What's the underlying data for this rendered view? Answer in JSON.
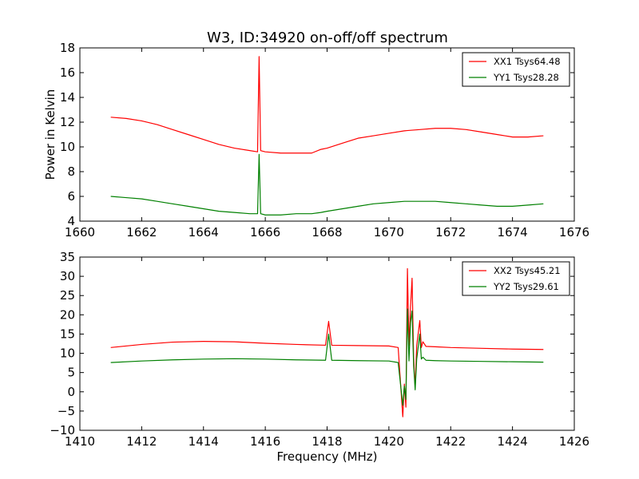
{
  "title": "W3, ID:34920 on-off/off spectrum",
  "chart_data": [
    {
      "type": "line",
      "ylabel": "Power in Kelvin",
      "xlabel": "",
      "xlim": [
        1660,
        1676
      ],
      "ylim": [
        4,
        18
      ],
      "xticks": [
        1660,
        1662,
        1664,
        1666,
        1668,
        1670,
        1672,
        1674,
        1676
      ],
      "yticks": [
        4,
        6,
        8,
        10,
        12,
        14,
        16,
        18
      ],
      "legend_position": "top-right",
      "series": [
        {
          "name": "XX1 Tsys64.48",
          "color": "#ff0000",
          "x": [
            1661.0,
            1661.5,
            1662.0,
            1662.5,
            1663.0,
            1663.5,
            1664.0,
            1664.5,
            1665.0,
            1665.5,
            1665.75,
            1665.8,
            1665.85,
            1666.0,
            1666.5,
            1667.0,
            1667.5,
            1667.8,
            1668.0,
            1668.5,
            1669.0,
            1669.5,
            1670.0,
            1670.5,
            1671.0,
            1671.5,
            1672.0,
            1672.5,
            1673.0,
            1673.5,
            1674.0,
            1674.5,
            1675.0
          ],
          "y": [
            12.4,
            12.3,
            12.1,
            11.8,
            11.4,
            11.0,
            10.6,
            10.2,
            9.9,
            9.7,
            9.6,
            17.3,
            9.7,
            9.6,
            9.5,
            9.5,
            9.5,
            9.8,
            9.9,
            10.3,
            10.7,
            10.9,
            11.1,
            11.3,
            11.4,
            11.5,
            11.5,
            11.4,
            11.2,
            11.0,
            10.8,
            10.8,
            10.9
          ]
        },
        {
          "name": "YY1 Tsys28.28",
          "color": "#008000",
          "x": [
            1661.0,
            1661.5,
            1662.0,
            1662.5,
            1663.0,
            1663.5,
            1664.0,
            1664.5,
            1665.0,
            1665.5,
            1665.75,
            1665.8,
            1665.85,
            1666.0,
            1666.5,
            1667.0,
            1667.5,
            1667.8,
            1668.0,
            1668.5,
            1669.0,
            1669.5,
            1670.0,
            1670.5,
            1671.0,
            1671.5,
            1672.0,
            1672.5,
            1673.0,
            1673.5,
            1674.0,
            1674.5,
            1675.0
          ],
          "y": [
            6.0,
            5.9,
            5.8,
            5.6,
            5.4,
            5.2,
            5.0,
            4.8,
            4.7,
            4.6,
            4.6,
            9.4,
            4.6,
            4.5,
            4.5,
            4.6,
            4.6,
            4.7,
            4.8,
            5.0,
            5.2,
            5.4,
            5.5,
            5.6,
            5.6,
            5.6,
            5.5,
            5.4,
            5.3,
            5.2,
            5.2,
            5.3,
            5.4
          ]
        }
      ]
    },
    {
      "type": "line",
      "ylabel": "",
      "xlabel": "Frequency (MHz)",
      "xlim": [
        1410,
        1426
      ],
      "ylim": [
        -10,
        35
      ],
      "xticks": [
        1410,
        1412,
        1414,
        1416,
        1418,
        1420,
        1422,
        1424,
        1426
      ],
      "yticks": [
        -10,
        -5,
        0,
        5,
        10,
        15,
        20,
        25,
        30,
        35
      ],
      "legend_position": "top-right",
      "series": [
        {
          "name": "XX2 Tsys45.21",
          "color": "#ff0000",
          "x": [
            1411.0,
            1412.0,
            1413.0,
            1414.0,
            1415.0,
            1416.0,
            1417.0,
            1417.95,
            1418.05,
            1418.15,
            1419.0,
            1420.0,
            1420.3,
            1420.45,
            1420.5,
            1420.55,
            1420.6,
            1420.65,
            1420.7,
            1420.75,
            1420.8,
            1420.85,
            1420.9,
            1421.0,
            1421.05,
            1421.1,
            1421.2,
            1421.5,
            1422.0,
            1423.0,
            1424.0,
            1425.0
          ],
          "y": [
            11.5,
            12.3,
            12.9,
            13.1,
            13.0,
            12.6,
            12.3,
            12.1,
            18.3,
            12.1,
            12.0,
            11.9,
            11.5,
            -6.5,
            2.0,
            -4.0,
            32.0,
            12.0,
            22.0,
            29.5,
            9.0,
            1.0,
            12.0,
            18.5,
            11.5,
            13.0,
            11.8,
            11.7,
            11.5,
            11.3,
            11.1,
            11.0
          ]
        },
        {
          "name": "YY2 Tsys29.61",
          "color": "#008000",
          "x": [
            1411.0,
            1412.0,
            1413.0,
            1414.0,
            1415.0,
            1416.0,
            1417.0,
            1417.95,
            1418.05,
            1418.15,
            1419.0,
            1420.0,
            1420.3,
            1420.45,
            1420.5,
            1420.55,
            1420.6,
            1420.65,
            1420.7,
            1420.75,
            1420.8,
            1420.85,
            1420.9,
            1421.0,
            1421.05,
            1421.1,
            1421.2,
            1421.5,
            1422.0,
            1423.0,
            1424.0,
            1425.0
          ],
          "y": [
            7.6,
            8.0,
            8.3,
            8.5,
            8.6,
            8.5,
            8.3,
            8.2,
            15.0,
            8.2,
            8.1,
            8.0,
            7.6,
            -3.5,
            1.5,
            -2.0,
            21.5,
            8.0,
            18.0,
            21.0,
            7.0,
            0.5,
            8.5,
            15.0,
            8.5,
            9.0,
            8.2,
            8.1,
            8.0,
            7.9,
            7.8,
            7.7
          ]
        }
      ]
    }
  ]
}
